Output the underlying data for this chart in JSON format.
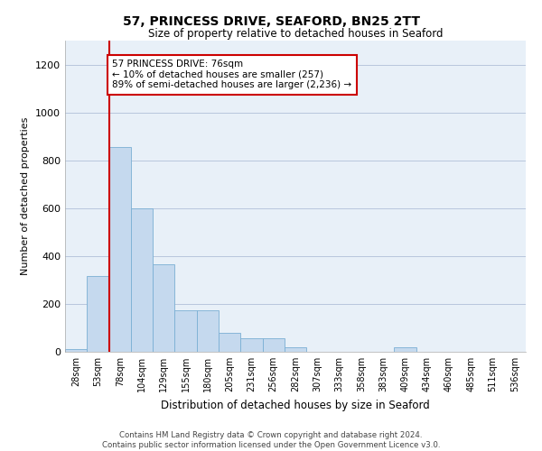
{
  "title": "57, PRINCESS DRIVE, SEAFORD, BN25 2TT",
  "subtitle": "Size of property relative to detached houses in Seaford",
  "xlabel": "Distribution of detached houses by size in Seaford",
  "ylabel": "Number of detached properties",
  "bar_color": "#c5d9ee",
  "bar_edge_color": "#7aafd4",
  "background_color": "#ffffff",
  "plot_bg_color": "#e8f0f8",
  "grid_color": "#b0c0d8",
  "categories": [
    "28sqm",
    "53sqm",
    "78sqm",
    "104sqm",
    "129sqm",
    "155sqm",
    "180sqm",
    "205sqm",
    "231sqm",
    "256sqm",
    "282sqm",
    "307sqm",
    "333sqm",
    "358sqm",
    "383sqm",
    "409sqm",
    "434sqm",
    "460sqm",
    "485sqm",
    "511sqm",
    "536sqm"
  ],
  "values": [
    10,
    315,
    855,
    600,
    365,
    175,
    175,
    80,
    55,
    55,
    20,
    0,
    0,
    0,
    0,
    20,
    0,
    0,
    0,
    0,
    0
  ],
  "ylim": [
    0,
    1300
  ],
  "yticks": [
    0,
    200,
    400,
    600,
    800,
    1000,
    1200
  ],
  "annotation_text": "57 PRINCESS DRIVE: 76sqm\n← 10% of detached houses are smaller (257)\n89% of semi-detached houses are larger (2,236) →",
  "annotation_box_color": "#ffffff",
  "annotation_border_color": "#cc0000",
  "property_line_color": "#cc0000",
  "footer_line1": "Contains HM Land Registry data © Crown copyright and database right 2024.",
  "footer_line2": "Contains public sector information licensed under the Open Government Licence v3.0."
}
